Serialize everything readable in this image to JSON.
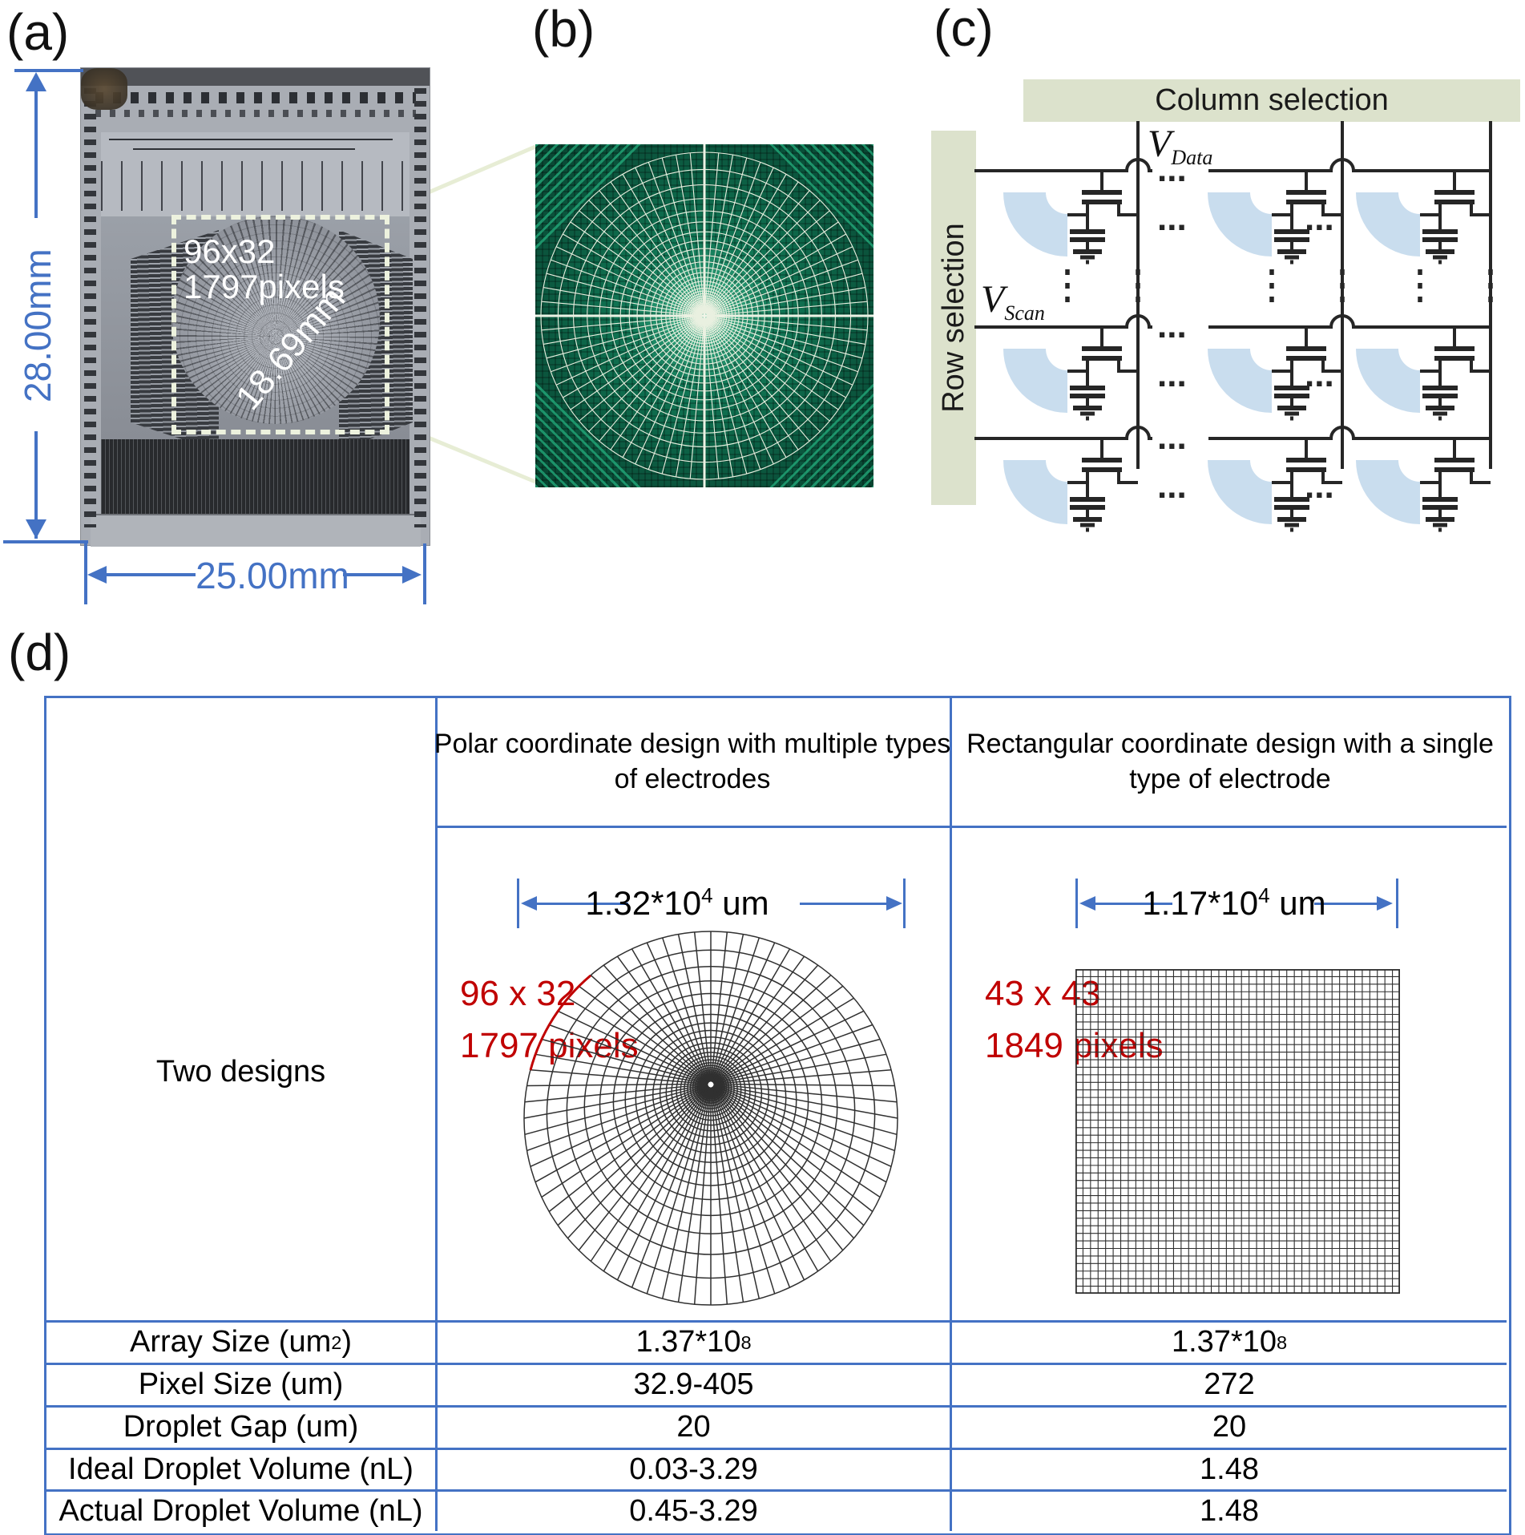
{
  "panel_labels": {
    "a": "(a)",
    "b": "(b)",
    "c": "(c)",
    "d": "(d)"
  },
  "panel_a": {
    "height_label": "28.00mm",
    "width_label": "25.00mm",
    "array_line1": "96x32",
    "array_line2": "1797pixels",
    "diagonal_label": "18.69mm"
  },
  "panel_c": {
    "column_bar_label": "Column selection",
    "row_bar_label": "Row selection",
    "v_data_base": "V",
    "v_data_sub": "Data",
    "v_scan_base": "V",
    "v_scan_sub": "Scan",
    "ellipsis": "..."
  },
  "table": {
    "header_polar": "Polar coordinate design with multiple types of electrodes",
    "header_rect": "Rectangular coordinate design with a single type of electrode",
    "two_designs_label": "Two designs",
    "polar_dim_base": "1.32*10",
    "polar_dim_sup": "4",
    "polar_dim_unit": " um",
    "rect_dim_base": "1.17*10",
    "rect_dim_sup": "4",
    "rect_dim_unit": " um",
    "polar_ann1": "96 x 32",
    "polar_ann2": "1797 pixels",
    "rect_ann1": "43 x 43",
    "rect_ann2": "1849 pixels",
    "rows": [
      {
        "label_base": "Array Size (um",
        "label_sup": "2",
        "label_end": ")",
        "polar_base": "1.37*10",
        "polar_sup": "8",
        "rect_base": "1.37*10",
        "rect_sup": "8"
      },
      {
        "label_base": "Pixel Size (um)",
        "label_sup": "",
        "label_end": "",
        "polar_base": "32.9-405",
        "polar_sup": "",
        "rect_base": "272",
        "rect_sup": ""
      },
      {
        "label_base": "Droplet Gap (um)",
        "label_sup": "",
        "label_end": "",
        "polar_base": "20",
        "polar_sup": "",
        "rect_base": "20",
        "rect_sup": ""
      },
      {
        "label_base": "Ideal Droplet Volume (nL)",
        "label_sup": "",
        "label_end": "",
        "polar_base": "0.03-3.29",
        "polar_sup": "",
        "rect_base": "1.48",
        "rect_sup": ""
      },
      {
        "label_base": "Actual Droplet Volume (nL)",
        "label_sup": "",
        "label_end": "",
        "polar_base": "0.45-3.29",
        "polar_sup": "",
        "rect_base": "1.48",
        "rect_sup": ""
      }
    ]
  },
  "grids": {
    "polar_design": {
      "rings": 26,
      "spokes": 72
    },
    "rect_design": {
      "cells": 43
    },
    "pcb_web": {
      "rings": 30,
      "spokes": 72
    }
  },
  "colors": {
    "accent_blue": "#4472c4",
    "annotation_red": "#c00000",
    "bar_green": "#dce2cc",
    "electrode_blue": "#c9ddee",
    "circuit_dark": "#262626",
    "pcb_green": "#0d5c41",
    "pcb_grid_line": "#e9f0e0"
  }
}
